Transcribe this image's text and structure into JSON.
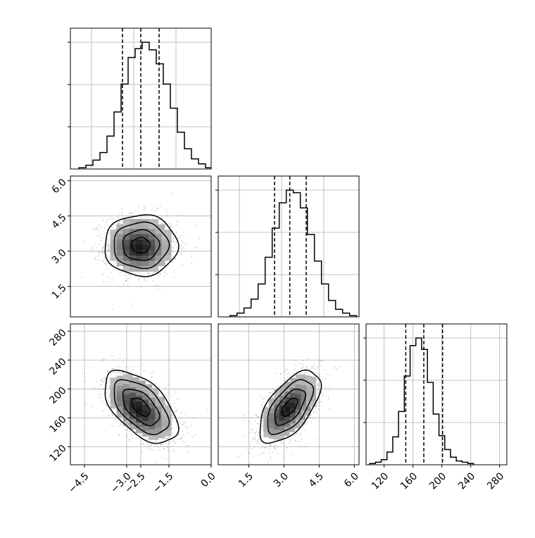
{
  "chart_data": [
    {
      "panel": "hist-param-1",
      "type": "bar",
      "x_range": [
        -5.0,
        0.0
      ],
      "grid": true,
      "quantiles": [
        -3.15,
        -2.5,
        -1.85
      ],
      "bins": {
        "edges_start": -4.7,
        "edge_step": 0.25,
        "counts": [
          1,
          3,
          7,
          13,
          26,
          45,
          67,
          88,
          95,
          100,
          94,
          83,
          67,
          48,
          29,
          16,
          8,
          4,
          1
        ]
      },
      "x_ticks": [],
      "y_ticks": []
    },
    {
      "panel": "scatter-param-1-vs-param-2",
      "type": "scatter",
      "x_range": [
        -5.0,
        0.0
      ],
      "y_range": [
        0.2,
        6.2
      ],
      "grid": true,
      "x_ticks": [],
      "y_ticks": [
        "1.5",
        "3.0",
        "4.5",
        "6.0"
      ],
      "y_tick_values": [
        1.5,
        3.0,
        4.5,
        6.0
      ],
      "mean": [
        -2.5,
        3.25
      ],
      "sd": [
        0.65,
        0.65
      ],
      "rho": 0.0,
      "contour_levels_sigma": [
        0.5,
        1.0,
        1.5,
        2.0
      ]
    },
    {
      "panel": "hist-param-2",
      "type": "bar",
      "x_range": [
        0.2,
        6.2
      ],
      "grid": true,
      "quantiles": [
        2.6,
        3.25,
        3.95
      ],
      "bins": {
        "edges_start": 0.7,
        "edge_step": 0.3,
        "counts": [
          1,
          3,
          7,
          14,
          26,
          47,
          70,
          90,
          100,
          98,
          86,
          65,
          44,
          26,
          13,
          6,
          3,
          1
        ]
      },
      "x_ticks": [],
      "y_ticks": []
    },
    {
      "panel": "scatter-param-1-vs-param-3",
      "type": "scatter",
      "x_range": [
        -5.0,
        0.0
      ],
      "y_range": [
        95,
        290
      ],
      "grid": true,
      "x_ticks": [
        "−4.5",
        "−3.0",
        "−2.5",
        "−1.5",
        "0.0"
      ],
      "x_tick_values": [
        -4.5,
        -3.0,
        -2.5,
        -1.5,
        0.0
      ],
      "y_ticks": [
        "120",
        "160",
        "200",
        "240",
        "280"
      ],
      "y_tick_values": [
        120,
        160,
        200,
        240,
        280
      ],
      "mean": [
        -2.5,
        175
      ],
      "sd": [
        0.65,
        25
      ],
      "rho": -0.55,
      "contour_levels_sigma": [
        0.5,
        1.0,
        1.5,
        2.0
      ]
    },
    {
      "panel": "scatter-param-2-vs-param-3",
      "type": "scatter",
      "x_range": [
        0.2,
        6.2
      ],
      "y_range": [
        95,
        290
      ],
      "grid": true,
      "x_ticks": [
        "1.5",
        "3.0",
        "4.5",
        "6.0"
      ],
      "x_tick_values": [
        1.5,
        3.0,
        4.5,
        6.0
      ],
      "y_ticks": [],
      "mean": [
        3.25,
        175
      ],
      "sd": [
        0.65,
        25
      ],
      "rho": 0.6,
      "contour_levels_sigma": [
        0.5,
        1.0,
        1.5,
        2.0
      ]
    },
    {
      "panel": "hist-param-3",
      "type": "bar",
      "x_range": [
        95,
        290
      ],
      "grid": true,
      "quantiles": [
        150,
        175,
        201
      ],
      "bins": {
        "edges_start": 100,
        "edge_step": 8,
        "counts": [
          1,
          2,
          4,
          10,
          22,
          42,
          70,
          94,
          100,
          91,
          65,
          40,
          23,
          12,
          6,
          3,
          2,
          1
        ]
      },
      "x_ticks": [
        "120",
        "160",
        "200",
        "240",
        "280"
      ],
      "x_tick_values": [
        120,
        160,
        200,
        240,
        280
      ],
      "y_ticks": []
    }
  ]
}
